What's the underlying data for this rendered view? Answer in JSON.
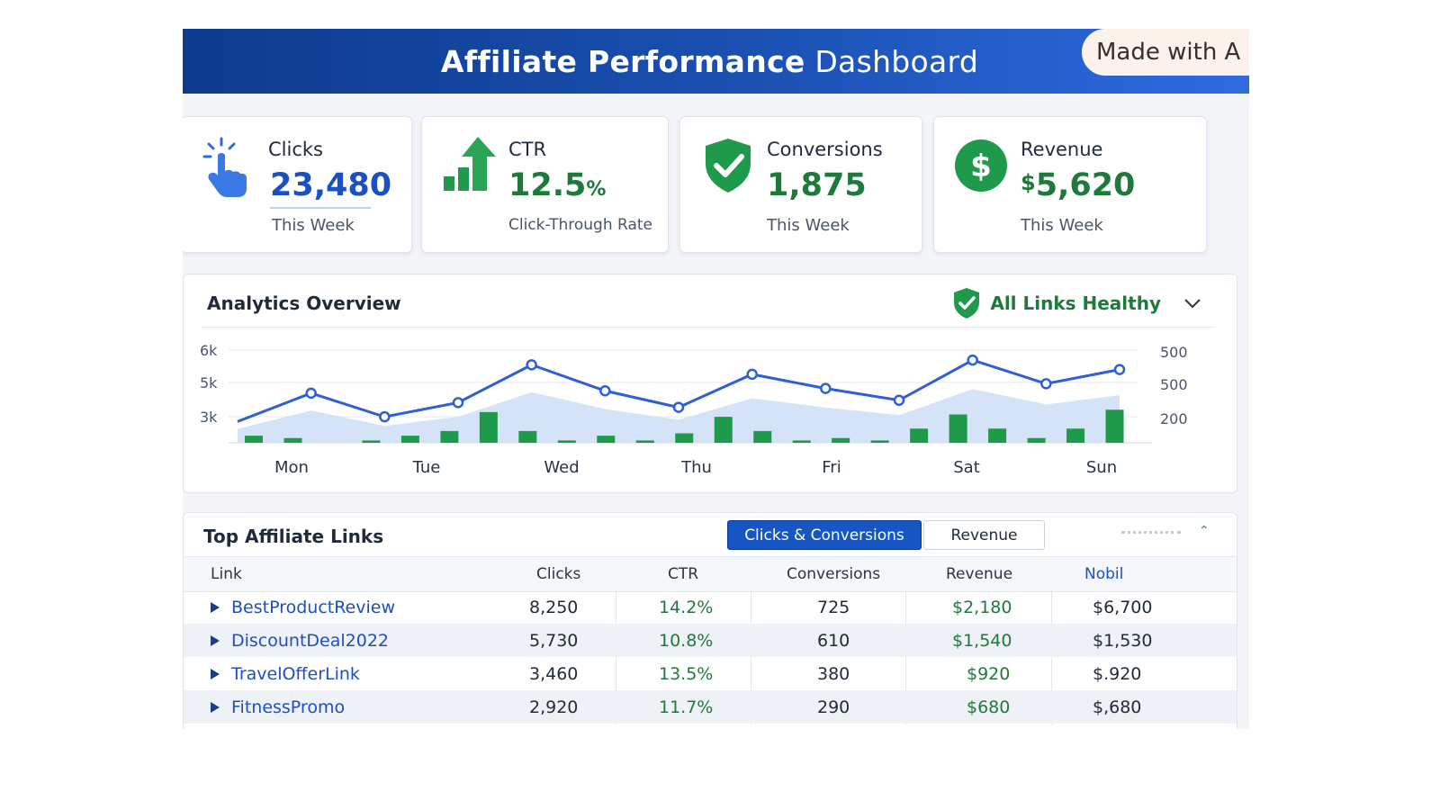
{
  "header": {
    "title_bold": "Affiliate Performance",
    "title_light": "Dashboard",
    "badge": "Made with A"
  },
  "cards": {
    "clicks": {
      "label": "Clicks",
      "value": "23,480",
      "sub": "This Week",
      "icon": "hand-pointer-icon"
    },
    "ctr": {
      "label": "CTR",
      "value": "12.5",
      "unit": "%",
      "sub": "Click-Through Rate",
      "icon": "bar-growth-arrow-icon"
    },
    "conversions": {
      "label": "Conversions",
      "value": "1,875",
      "sub": "This Week",
      "icon": "shield-check-icon"
    },
    "revenue": {
      "label": "Revenue",
      "currency": "$",
      "value": "5,620",
      "sub": "This Week",
      "icon": "dollar-coin-icon"
    }
  },
  "overview": {
    "title": "Analytics Overview",
    "status": "All Links Healthy"
  },
  "chart_data": {
    "type": "bar+line",
    "categories": [
      "Mon",
      "Tue",
      "Wed",
      "Thu",
      "Fri",
      "Sat",
      "Sun"
    ],
    "y_left_ticks": [
      "6k",
      "5k",
      "3k"
    ],
    "y_right_ticks": [
      "500",
      "500",
      "200"
    ],
    "line_series": {
      "points": [
        2.9,
        4.1,
        3.1,
        3.7,
        5.3,
        4.2,
        3.5,
        4.9,
        4.3,
        3.8,
        5.5,
        4.5,
        5.1
      ]
    },
    "bar_series": {
      "values": [
        2.3,
        2.2,
        2.0,
        2.1,
        2.3,
        2.5,
        3.3,
        2.5,
        2.1,
        2.3,
        2.1,
        2.4,
        3.1,
        2.5,
        2.1,
        2.2,
        2.1,
        2.6,
        3.2,
        2.6,
        2.2,
        2.6,
        3.4
      ]
    },
    "colors": {
      "line": "#2f5fd6",
      "bars": "#1f9a4a",
      "area": "#cfe0f7"
    },
    "legend": "none",
    "grid": true
  },
  "links_table": {
    "title": "Top Affiliate Links",
    "tabs": [
      "Clicks & Conversions",
      "Revenue"
    ],
    "columns": [
      "Link",
      "Clicks",
      "CTR",
      "Conversions",
      "Revenue",
      "Nobil"
    ],
    "rows": [
      {
        "link": "BestProductReview",
        "clicks": "8,250",
        "ctr": "14.2%",
        "conversions": "725",
        "revenue": "$2,180",
        "extra": "$6,700"
      },
      {
        "link": "DiscountDeal2022",
        "clicks": "5,730",
        "ctr": "10.8%",
        "conversions": "610",
        "revenue": "$1,540",
        "extra": "$1,530"
      },
      {
        "link": "TravelOfferLink",
        "clicks": "3,460",
        "ctr": "13.5%",
        "conversions": "380",
        "revenue": "$920",
        "extra": "$.920"
      },
      {
        "link": "FitnessPromo",
        "clicks": "2,920",
        "ctr": "11.7%",
        "conversions": "290",
        "revenue": "$680",
        "extra": "$,680"
      }
    ]
  }
}
